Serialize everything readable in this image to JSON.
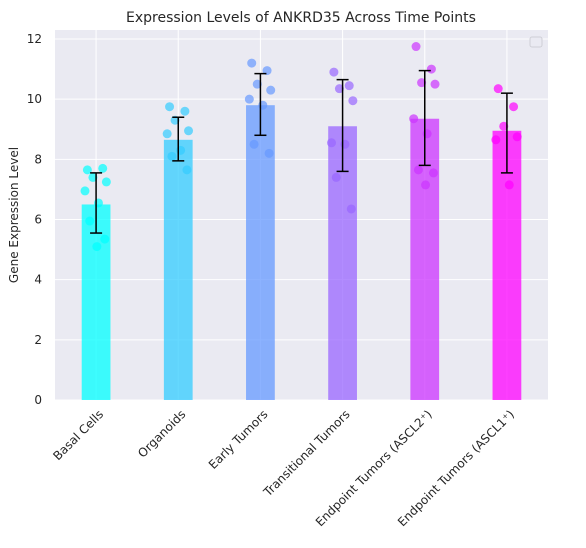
{
  "chart_data": {
    "type": "bar",
    "title": "Expression Levels of ANKRD35 Across Time Points",
    "xlabel": "",
    "ylabel": "Gene Expression Level",
    "ylim": [
      0,
      12.3
    ],
    "yticks": [
      0,
      2,
      4,
      6,
      8,
      10,
      12
    ],
    "grid": true,
    "legend": "top-right (empty)",
    "categories": [
      "Basal Cells",
      "Organoids",
      "Early Tumors",
      "Transitional Tumors",
      "Endpoint Tumors (ASCL2⁺)",
      "Endpoint Tumors (ASCL1⁺)"
    ],
    "values": [
      6.5,
      8.65,
      9.8,
      9.1,
      9.35,
      8.95
    ],
    "error_low": [
      5.55,
      7.95,
      8.8,
      7.6,
      7.8,
      7.55
    ],
    "error_high": [
      7.55,
      9.4,
      10.85,
      10.65,
      10.95,
      10.2
    ],
    "colors": [
      "#00ffff",
      "#33ccff",
      "#6699ff",
      "#9966ff",
      "#cc33ff",
      "#ff00ff"
    ],
    "points": [
      [
        7.65,
        7.7,
        7.4,
        7.25,
        6.95,
        6.55,
        5.95,
        5.35,
        5.1
      ],
      [
        9.75,
        9.6,
        9.3,
        8.95,
        8.85,
        8.3,
        8.1,
        7.65
      ],
      [
        11.2,
        10.95,
        10.5,
        10.3,
        10.0,
        9.8,
        8.5,
        8.2
      ],
      [
        10.9,
        10.45,
        10.35,
        9.95,
        8.55,
        8.5,
        7.4,
        6.35
      ],
      [
        11.75,
        11.0,
        10.55,
        10.5,
        9.35,
        8.85,
        7.65,
        7.55,
        7.15
      ],
      [
        10.35,
        9.75,
        9.1,
        8.75,
        8.65,
        7.15
      ]
    ]
  }
}
